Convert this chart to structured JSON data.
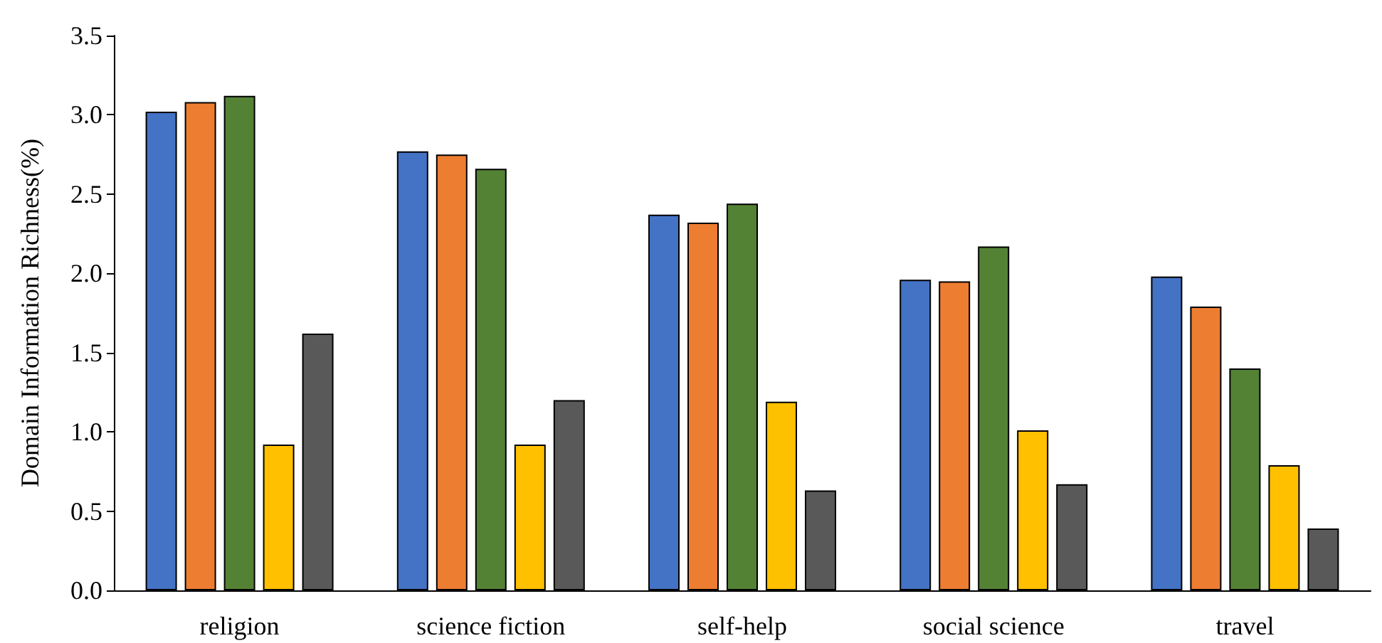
{
  "chart_data": {
    "type": "bar",
    "ylabel": "Domain Information Richness(%)",
    "categories": [
      "religion",
      "science fiction",
      "self-help",
      "social science",
      "travel"
    ],
    "series": [
      {
        "color": "#4472c4",
        "values": [
          3.02,
          2.77,
          2.37,
          1.96,
          1.98
        ]
      },
      {
        "color": "#ed7d31",
        "values": [
          3.08,
          2.75,
          2.32,
          1.95,
          1.79
        ]
      },
      {
        "color": "#548235",
        "values": [
          3.12,
          2.66,
          2.44,
          2.17,
          1.4
        ]
      },
      {
        "color": "#ffc000",
        "values": [
          0.92,
          0.92,
          1.19,
          1.01,
          0.79
        ]
      },
      {
        "color": "#595959",
        "values": [
          1.62,
          1.2,
          0.63,
          0.67,
          0.39
        ]
      }
    ],
    "ylim": [
      0,
      3.5
    ],
    "yticks": [
      {
        "value": 0,
        "label": "0.0"
      },
      0.5,
      {
        "value": 1,
        "label": "1.0"
      },
      1.5,
      {
        "value": 2,
        "label": "2.0"
      },
      2.5,
      {
        "value": 3,
        "label": "3.0"
      },
      3.5
    ],
    "grid": false
  }
}
